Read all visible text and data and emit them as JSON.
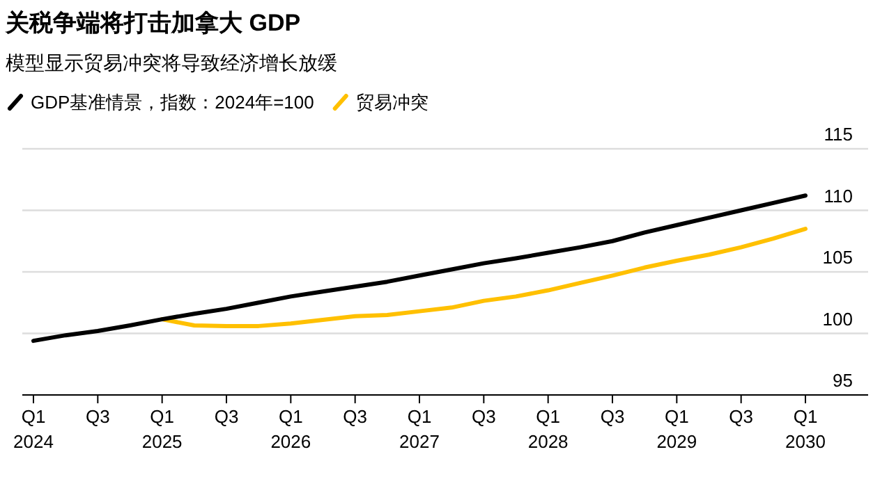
{
  "chart_data": {
    "type": "line",
    "title": "关税争端将打击加拿大 GDP",
    "subtitle": "模型显示贸易冲突将导致经济增长放缓",
    "categories": [
      "Q1 2024",
      null,
      "Q3",
      null,
      "Q1 2025",
      null,
      "Q3",
      null,
      "Q1 2026",
      null,
      "Q3",
      null,
      "Q1 2027",
      null,
      "Q3",
      null,
      "Q1 2028",
      null,
      "Q3",
      null,
      "Q1 2029",
      null,
      "Q3",
      null,
      "Q1 2030"
    ],
    "series": [
      {
        "name": "GDP基准情景，指数：2024年=100",
        "color": "#000000",
        "values": [
          99.4,
          99.85,
          100.2,
          100.65,
          101.15,
          101.6,
          102.0,
          102.5,
          103.0,
          103.4,
          103.8,
          104.2,
          104.7,
          105.2,
          105.7,
          106.1,
          106.55,
          107.0,
          107.5,
          108.2,
          108.8,
          109.4,
          110.0,
          110.6,
          111.2
        ]
      },
      {
        "name": "贸易冲突",
        "color": "#ffc000",
        "values": [
          null,
          null,
          null,
          null,
          101.15,
          100.65,
          100.6,
          100.6,
          100.8,
          101.1,
          101.4,
          101.5,
          101.8,
          102.1,
          102.65,
          103.0,
          103.5,
          104.1,
          104.7,
          105.35,
          105.9,
          106.4,
          107.0,
          107.7,
          108.5
        ]
      }
    ],
    "ylim": [
      95,
      115
    ],
    "yticks": [
      95,
      100,
      105,
      110,
      115
    ],
    "grid": "y",
    "legend": "top left",
    "line_style": "solid",
    "marker": "none"
  }
}
